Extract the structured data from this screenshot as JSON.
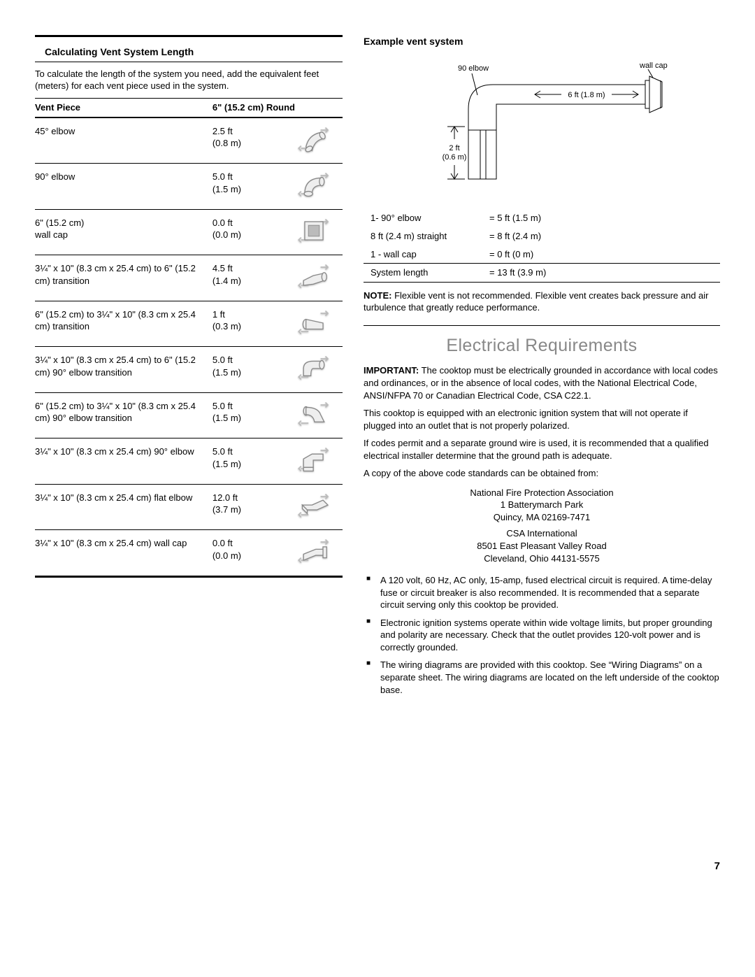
{
  "left": {
    "section_title": "Calculating Vent System Length",
    "intro": "To calculate the length of the system you need, add the equivalent feet (meters) for each vent piece used in the system.",
    "col1_header": "Vent Piece",
    "col2_header": "6\" (15.2 cm) Round",
    "rows": [
      {
        "piece": "45° elbow",
        "ft": "2.5 ft",
        "m": "(0.8 m)"
      },
      {
        "piece": "90° elbow",
        "ft": "5.0 ft",
        "m": "(1.5 m)"
      },
      {
        "piece": "6\" (15.2 cm)\nwall cap",
        "ft": "0.0 ft",
        "m": "(0.0 m)"
      },
      {
        "piece": "3¼\" x 10\" (8.3 cm x 25.4 cm) to 6\" (15.2 cm) transition",
        "ft": "4.5 ft",
        "m": "(1.4 m)"
      },
      {
        "piece": "6\" (15.2 cm) to 3¼\" x 10\" (8.3 cm x 25.4 cm) transition",
        "ft": "1 ft",
        "m": "(0.3 m)"
      },
      {
        "piece": "3¼\" x 10\" (8.3 cm x 25.4 cm) to 6\" (15.2 cm) 90° elbow transition",
        "ft": "5.0 ft",
        "m": "(1.5 m)"
      },
      {
        "piece": "6\" (15.2 cm) to 3¼\" x 10\" (8.3 cm x 25.4 cm) 90° elbow transition",
        "ft": "5.0 ft",
        "m": "(1.5 m)"
      },
      {
        "piece": "3¼\" x 10\" (8.3 cm x 25.4 cm) 90° elbow",
        "ft": "5.0 ft",
        "m": "(1.5 m)"
      },
      {
        "piece": "3¼\" x 10\" (8.3 cm x 25.4 cm) flat elbow",
        "ft": "12.0 ft",
        "m": "(3.7 m)"
      },
      {
        "piece": "3¼\" x 10\" (8.3 cm x 25.4 cm) wall cap",
        "ft": "0.0 ft",
        "m": "(0.0 m)"
      }
    ]
  },
  "right": {
    "example_title": "Example vent system",
    "diagram": {
      "elbow_label": "90  elbow",
      "wallcap_label": "wall cap",
      "horiz_label": "6 ft (1.8 m)",
      "vert_label_l1": "2 ft",
      "vert_label_l2": "(0.6 m)"
    },
    "ex_rows": [
      {
        "k": "1- 90° elbow",
        "v": "= 5 ft (1.5 m)"
      },
      {
        "k": "8 ft (2.4 m) straight",
        "v": "= 8 ft (2.4 m)"
      },
      {
        "k": "1 - wall cap",
        "v": "= 0 ft (0 m)"
      },
      {
        "k": "System length",
        "v": "= 13 ft (3.9 m)"
      }
    ],
    "note_label": "NOTE:",
    "note_text": " Flexible vent is not recommended. Flexible vent creates back pressure and air turbulence that greatly reduce performance.",
    "elec_heading": "Electrical Requirements",
    "important_label": "IMPORTANT:",
    "important_text": " The cooktop must be electrically grounded in accordance with local codes and ordinances, or in the absence of local codes, with the National Electrical Code, ANSI/NFPA 70 or Canadian Electrical Code, CSA C22.1.",
    "p2": "This cooktop is equipped with an electronic ignition system that will not operate if plugged into an outlet that is not properly polarized.",
    "p3": "If codes permit and a separate ground wire is used, it is recommended that a qualified electrical installer determine that the ground path is adequate.",
    "p4": "A copy of the above code standards can be obtained from:",
    "addr1_l1": "National Fire Protection Association",
    "addr1_l2": "1 Batterymarch Park",
    "addr1_l3": "Quincy, MA 02169-7471",
    "addr2_l1": "CSA International",
    "addr2_l2": "8501 East Pleasant Valley Road",
    "addr2_l3": "Cleveland, Ohio 44131-5575",
    "bullets": [
      "A 120 volt, 60 Hz, AC only, 15-amp, fused electrical circuit is required. A time-delay fuse or circuit breaker is also recommended. It is recommended that a separate circuit serving only this cooktop be provided.",
      "Electronic ignition systems operate within wide voltage limits, but proper grounding and polarity are necessary. Check that the outlet provides 120-volt power and is correctly grounded.",
      "The wiring diagrams are provided with this cooktop. See “Wiring Diagrams” on a separate sheet. The wiring diagrams are located on the left underside of the cooktop base."
    ]
  },
  "page_number": "7"
}
